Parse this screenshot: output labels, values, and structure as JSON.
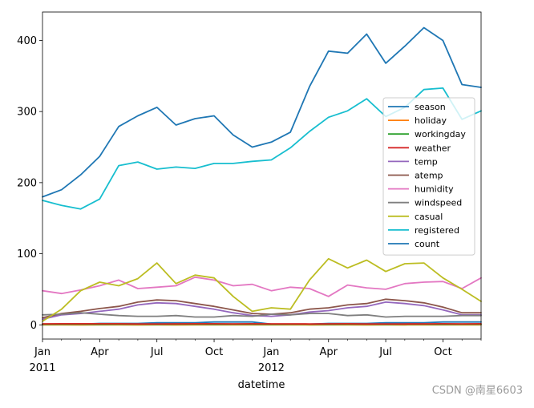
{
  "chart_data": {
    "type": "line",
    "title": "",
    "xlabel": "datetime",
    "ylabel": "",
    "ylim": [
      -20,
      440
    ],
    "yticks": [
      0,
      100,
      200,
      300,
      400
    ],
    "x": [
      "2011-01",
      "2011-02",
      "2011-03",
      "2011-04",
      "2011-05",
      "2011-06",
      "2011-07",
      "2011-08",
      "2011-09",
      "2011-10",
      "2011-11",
      "2011-12",
      "2012-01",
      "2012-02",
      "2012-03",
      "2012-04",
      "2012-05",
      "2012-06",
      "2012-07",
      "2012-08",
      "2012-09",
      "2012-10",
      "2012-11",
      "2012-12"
    ],
    "xticks": [
      {
        "index": 0,
        "label": "Jan",
        "sublabel": "2011"
      },
      {
        "index": 3,
        "label": "Apr",
        "sublabel": ""
      },
      {
        "index": 6,
        "label": "Jul",
        "sublabel": ""
      },
      {
        "index": 9,
        "label": "Oct",
        "sublabel": ""
      },
      {
        "index": 12,
        "label": "Jan",
        "sublabel": "2012"
      },
      {
        "index": 15,
        "label": "Apr",
        "sublabel": ""
      },
      {
        "index": 18,
        "label": "Jul",
        "sublabel": ""
      },
      {
        "index": 21,
        "label": "Oct",
        "sublabel": ""
      }
    ],
    "series": [
      {
        "name": "season",
        "color": "#1f77b4",
        "values": [
          1,
          1,
          1,
          2,
          2,
          2,
          3,
          3,
          3,
          4,
          4,
          4,
          1,
          1,
          1,
          2,
          2,
          2,
          3,
          3,
          3,
          4,
          4,
          4
        ]
      },
      {
        "name": "holiday",
        "color": "#ff7f0e",
        "values": [
          0.06,
          0.04,
          0,
          0.03,
          0.03,
          0,
          0.05,
          0,
          0.04,
          0.05,
          0.04,
          0.04,
          0.06,
          0.04,
          0,
          0.03,
          0.03,
          0,
          0.05,
          0,
          0.04,
          0.05,
          0.04,
          0.04
        ]
      },
      {
        "name": "workingday",
        "color": "#2ca02c",
        "values": [
          0.65,
          0.7,
          0.7,
          0.65,
          0.7,
          0.7,
          0.65,
          0.7,
          0.7,
          0.65,
          0.7,
          0.7,
          0.65,
          0.7,
          0.7,
          0.65,
          0.7,
          0.7,
          0.65,
          0.7,
          0.7,
          0.65,
          0.7,
          0.7
        ]
      },
      {
        "name": "weather",
        "color": "#d62728",
        "values": [
          1.4,
          1.5,
          1.5,
          1.5,
          1.5,
          1.3,
          1.3,
          1.4,
          1.5,
          1.5,
          1.4,
          1.5,
          1.4,
          1.4,
          1.3,
          1.4,
          1.5,
          1.3,
          1.3,
          1.3,
          1.4,
          1.5,
          1.4,
          1.5
        ]
      },
      {
        "name": "temp",
        "color": "#9467bd",
        "values": [
          8,
          14,
          16,
          19,
          22,
          28,
          31,
          30,
          26,
          22,
          17,
          13,
          12,
          14,
          18,
          20,
          24,
          26,
          32,
          30,
          27,
          21,
          14,
          14
        ]
      },
      {
        "name": "atemp",
        "color": "#8c564b",
        "values": [
          10,
          16,
          19,
          23,
          26,
          32,
          35,
          34,
          30,
          26,
          21,
          16,
          15,
          17,
          22,
          24,
          28,
          30,
          36,
          34,
          31,
          25,
          17,
          17
        ]
      },
      {
        "name": "humidity",
        "color": "#e377c2",
        "values": [
          48,
          44,
          49,
          55,
          63,
          51,
          53,
          55,
          67,
          63,
          55,
          57,
          48,
          53,
          51,
          40,
          56,
          52,
          50,
          58,
          60,
          61,
          51,
          66
        ]
      },
      {
        "name": "windspeed",
        "color": "#7f7f7f",
        "values": [
          14,
          15,
          17,
          15,
          13,
          12,
          12,
          13,
          11,
          11,
          13,
          12,
          15,
          14,
          16,
          16,
          13,
          14,
          11,
          12,
          12,
          12,
          13,
          13
        ]
      },
      {
        "name": "casual",
        "color": "#bcbd22",
        "values": [
          5,
          22,
          48,
          60,
          55,
          65,
          87,
          58,
          70,
          66,
          40,
          19,
          24,
          22,
          63,
          93,
          80,
          91,
          75,
          86,
          87,
          66,
          50,
          33
        ]
      },
      {
        "name": "registered",
        "color": "#17becf",
        "values": [
          175,
          168,
          163,
          177,
          224,
          229,
          219,
          222,
          220,
          227,
          227,
          230,
          232,
          249,
          272,
          292,
          301,
          318,
          293,
          306,
          331,
          333,
          289,
          301
        ]
      },
      {
        "name": "count",
        "color": "#1f77b4",
        "values": [
          180,
          190,
          211,
          237,
          279,
          294,
          306,
          281,
          290,
          294,
          267,
          250,
          257,
          271,
          335,
          385,
          382,
          409,
          368,
          392,
          418,
          400,
          338,
          334
        ]
      }
    ],
    "legend": {
      "placement": "center-right"
    }
  },
  "watermark": "CSDN @南星6603"
}
